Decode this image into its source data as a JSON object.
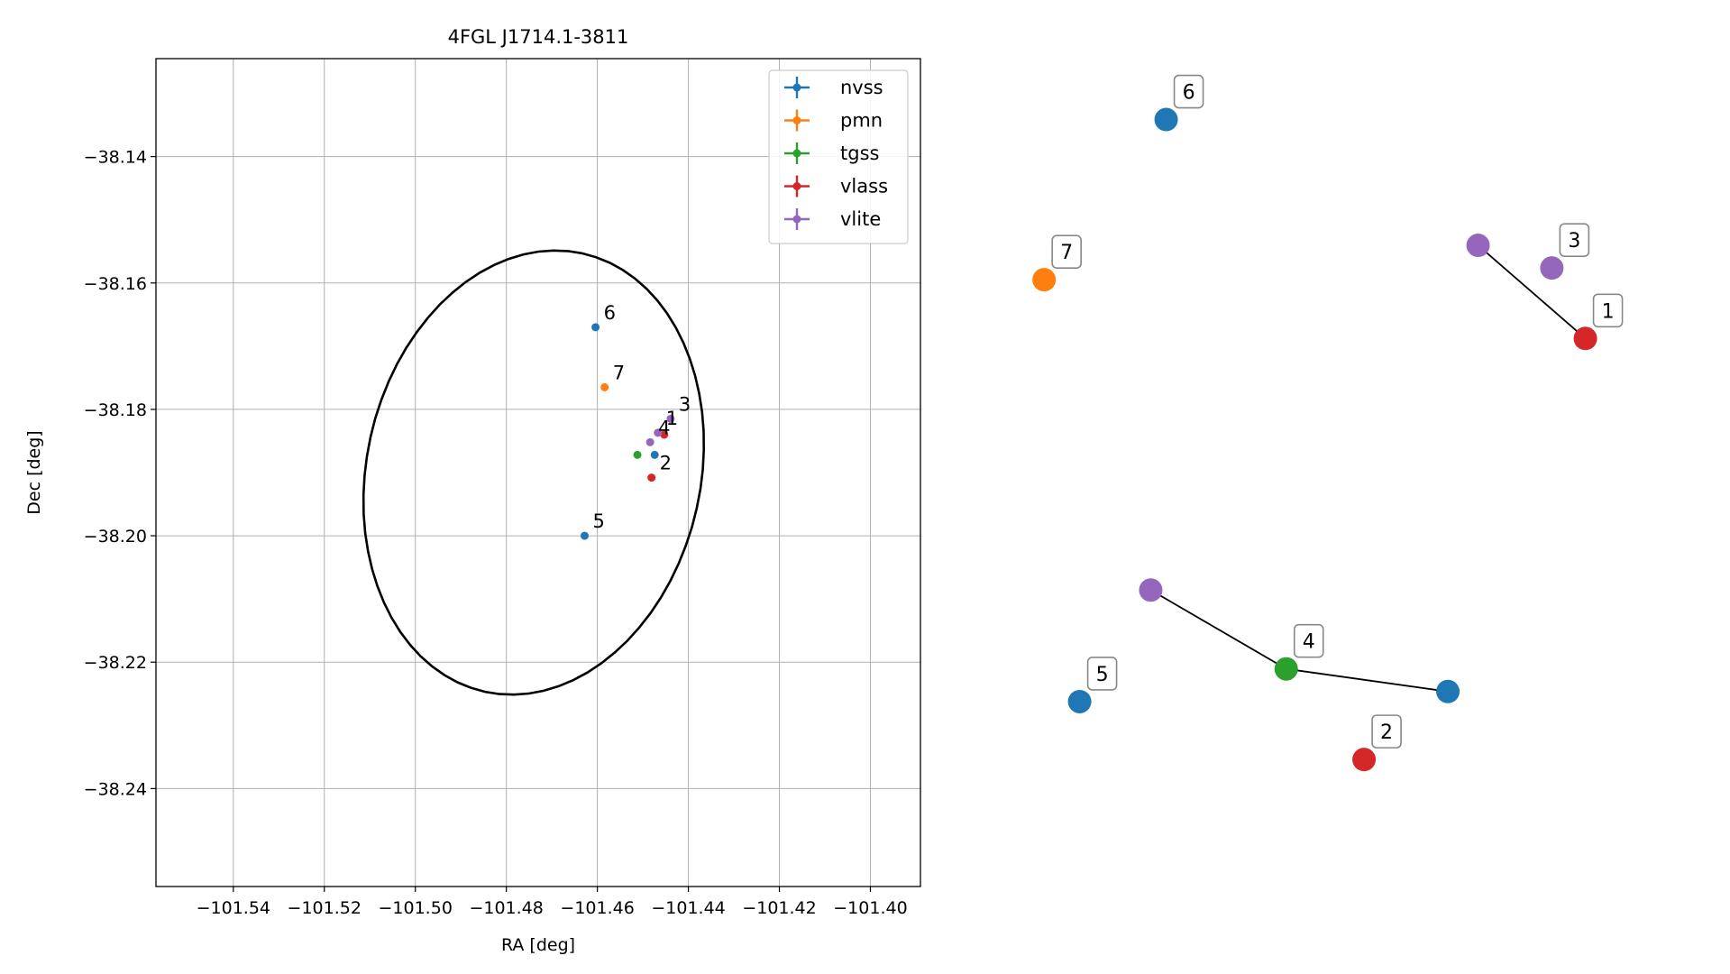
{
  "chart_data": [
    {
      "type": "scatter",
      "title": "4FGL J1714.1-3811",
      "xlabel": "RA [deg]",
      "ylabel": "Dec [deg]",
      "xlim": [
        -101.557,
        -101.389
      ],
      "ylim": [
        -38.2555,
        -38.1245
      ],
      "xticks": [
        -101.54,
        -101.52,
        -101.5,
        -101.48,
        -101.46,
        -101.44,
        -101.42,
        -101.4
      ],
      "yticks": [
        -38.14,
        -38.16,
        -38.18,
        -38.2,
        -38.22,
        -38.24
      ],
      "xtick_labels": [
        "−101.54",
        "−101.52",
        "−101.50",
        "−101.48",
        "−101.46",
        "−101.44",
        "−101.42",
        "−101.40"
      ],
      "ytick_labels": [
        "−38.14",
        "−38.16",
        "−38.18",
        "−38.20",
        "−38.22",
        "−38.24"
      ],
      "grid": true,
      "legend_position": "top-right",
      "ellipse": {
        "center": [
          -101.474,
          -38.19
        ],
        "semi_major": 0.0388,
        "semi_minor": 0.0336,
        "angle_deg": 32
      },
      "series": [
        {
          "name": "nvss",
          "color": "#1f77b4",
          "points": [
            {
              "x": -101.4604,
              "y": -38.167,
              "label": "6"
            },
            {
              "x": -101.4628,
              "y": -38.2,
              "label": "5"
            },
            {
              "x": -101.4474,
              "y": -38.1872,
              "label": ""
            }
          ]
        },
        {
          "name": "pmn",
          "color": "#ff7f0e",
          "points": [
            {
              "x": -101.4584,
              "y": -38.1765,
              "label": "7"
            }
          ]
        },
        {
          "name": "tgss",
          "color": "#2ca02c",
          "points": [
            {
              "x": -101.4512,
              "y": -38.1872,
              "label": ""
            }
          ]
        },
        {
          "name": "vlass",
          "color": "#d62728",
          "points": [
            {
              "x": -101.4481,
              "y": -38.1908,
              "label": "2"
            },
            {
              "x": -101.4453,
              "y": -38.184,
              "label": ""
            }
          ]
        },
        {
          "name": "vlite",
          "color": "#9467bd",
          "points": [
            {
              "x": -101.4439,
              "y": -38.1815,
              "label": "3"
            },
            {
              "x": -101.4467,
              "y": -38.1837,
              "label": "1"
            },
            {
              "x": -101.4484,
              "y": -38.1852,
              "label": "4"
            }
          ]
        }
      ]
    },
    {
      "type": "scatter",
      "title": "",
      "xlabel": "",
      "ylabel": "",
      "xlim": [
        0,
        100
      ],
      "ylim": [
        0,
        100
      ],
      "grid": false,
      "axes_visible": false,
      "nodes": [
        {
          "id": "n6",
          "x": 19.7,
          "y": 92.2,
          "color": "#1f77b4",
          "label": "6"
        },
        {
          "id": "v_a",
          "x": 66.2,
          "y": 77.2,
          "color": "#9467bd",
          "label": ""
        },
        {
          "id": "n3",
          "x": 77.2,
          "y": 74.5,
          "color": "#9467bd",
          "label": "3"
        },
        {
          "id": "r1",
          "x": 82.2,
          "y": 66.1,
          "color": "#d62728",
          "label": "1"
        },
        {
          "id": "p7",
          "x": 1.5,
          "y": 73.1,
          "color": "#ff7f0e",
          "label": "7"
        },
        {
          "id": "v_b",
          "x": 17.4,
          "y": 36.1,
          "color": "#9467bd",
          "label": ""
        },
        {
          "id": "g4",
          "x": 37.6,
          "y": 26.7,
          "color": "#2ca02c",
          "label": "4"
        },
        {
          "id": "n_r",
          "x": 61.7,
          "y": 24.0,
          "color": "#1f77b4",
          "label": ""
        },
        {
          "id": "n5",
          "x": 6.8,
          "y": 22.8,
          "color": "#1f77b4",
          "label": "5"
        },
        {
          "id": "r2",
          "x": 49.2,
          "y": 15.9,
          "color": "#d62728",
          "label": "2"
        }
      ],
      "edges": [
        [
          "v_a",
          "r1"
        ],
        [
          "v_b",
          "g4"
        ],
        [
          "g4",
          "n_r"
        ]
      ]
    }
  ]
}
